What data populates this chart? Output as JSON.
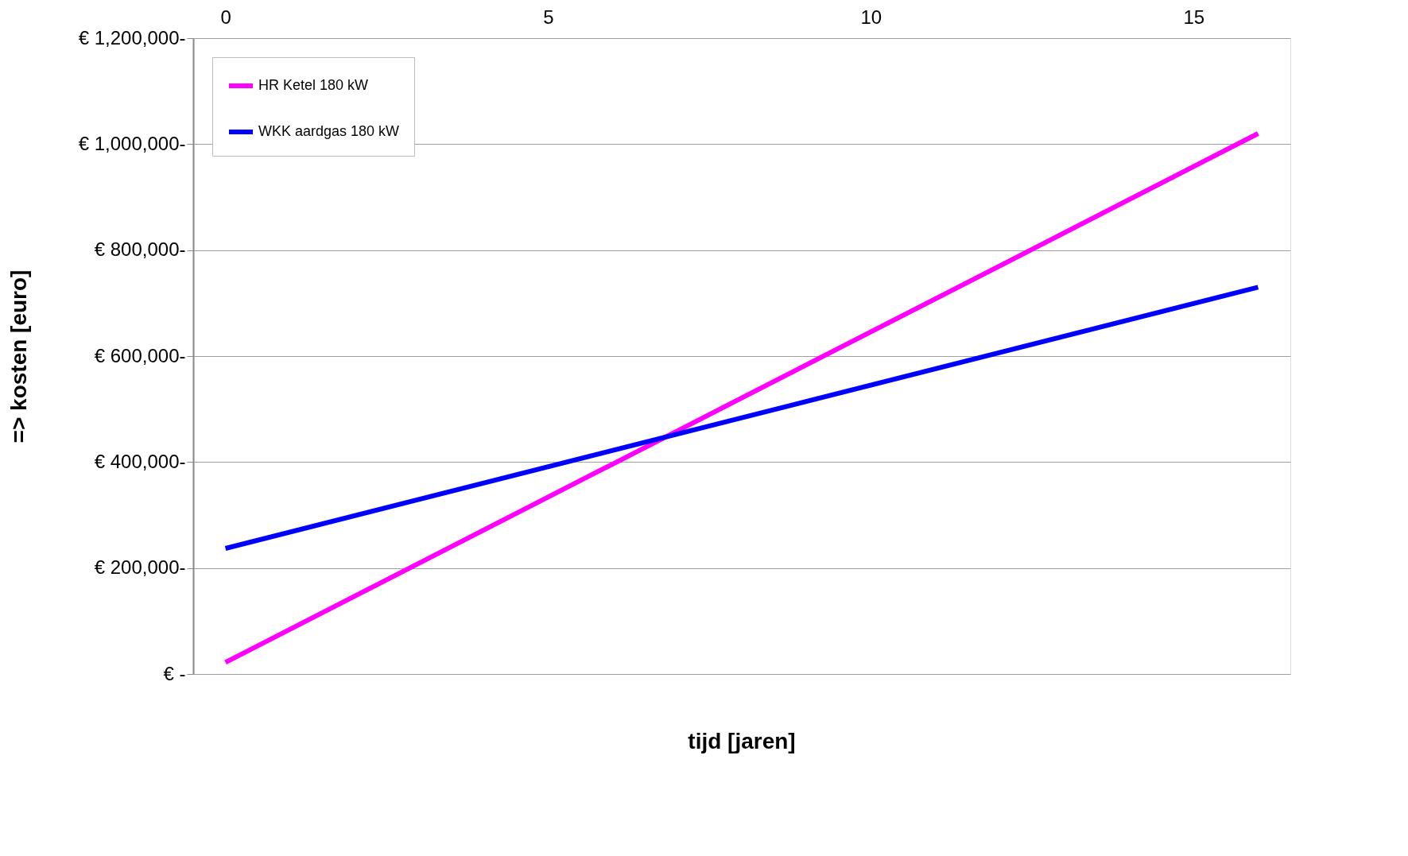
{
  "chart_data": {
    "type": "line",
    "xlabel": "tijd [jaren]",
    "ylabel": "=> kosten [euro]",
    "xlim": [
      -0.5,
      16.5
    ],
    "xticks": [
      0,
      5,
      10,
      15
    ],
    "ylim": [
      0,
      1200000
    ],
    "yticks": [
      {
        "value": 0,
        "label": "€ -"
      },
      {
        "value": 200000,
        "label": "€ 200,000-"
      },
      {
        "value": 400000,
        "label": "€ 400,000-"
      },
      {
        "value": 600000,
        "label": "€ 600,000-"
      },
      {
        "value": 800000,
        "label": "€ 800,000-"
      },
      {
        "value": 1000000,
        "label": "€ 1,000,000-"
      },
      {
        "value": 1200000,
        "label": "€ 1,200,000-"
      }
    ],
    "x": [
      0,
      16
    ],
    "series": [
      {
        "name": "HR Ketel 180 kW",
        "color": "#ff00ff",
        "values": [
          22000,
          1020000
        ]
      },
      {
        "name": "WKK aardgas 180 kW",
        "color": "#0000ff",
        "values": [
          237000,
          730000
        ]
      }
    ],
    "grid": "y",
    "legend": "top left",
    "line_style": "solid",
    "marker": "none"
  }
}
